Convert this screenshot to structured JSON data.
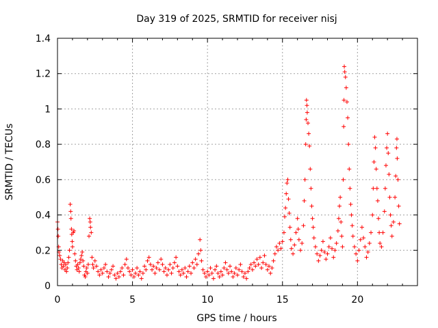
{
  "chart_data": {
    "type": "scatter",
    "title": "Day 319 of 2025, SRMTID for receiver nisj",
    "xlabel": "GPS time / hours",
    "ylabel": "SRMTID / TECUs",
    "xlim": [
      0,
      24
    ],
    "ylim": [
      0,
      1.4
    ],
    "xticks": [
      0,
      5,
      10,
      15,
      20
    ],
    "xtick_labels": [
      "0",
      "5",
      "10",
      "15",
      "20"
    ],
    "yticks": [
      0,
      0.2,
      0.4,
      0.6,
      0.8,
      1.0,
      1.2,
      1.4
    ],
    "ytick_labels": [
      "0",
      "0.2",
      "0.4",
      "0.6",
      "0.8",
      "1",
      "1.2",
      "1.4"
    ],
    "grid": true,
    "marker": "+",
    "color": "#ff0000",
    "series": [
      {
        "name": "SRMTID",
        "points": [
          [
            0.0,
            0.36
          ],
          [
            0.03,
            0.32
          ],
          [
            0.05,
            0.28
          ],
          [
            0.08,
            0.22
          ],
          [
            0.1,
            0.19
          ],
          [
            0.15,
            0.17
          ],
          [
            0.2,
            0.15
          ],
          [
            0.25,
            0.12
          ],
          [
            0.3,
            0.1
          ],
          [
            0.35,
            0.14
          ],
          [
            0.4,
            0.11
          ],
          [
            0.45,
            0.13
          ],
          [
            0.5,
            0.09
          ],
          [
            0.55,
            0.12
          ],
          [
            0.6,
            0.08
          ],
          [
            0.65,
            0.1
          ],
          [
            0.7,
            0.13
          ],
          [
            0.75,
            0.16
          ],
          [
            0.8,
            0.2
          ],
          [
            0.85,
            0.46
          ],
          [
            0.88,
            0.42
          ],
          [
            0.9,
            0.38
          ],
          [
            0.93,
            0.32
          ],
          [
            0.95,
            0.29
          ],
          [
            0.98,
            0.25
          ],
          [
            1.0,
            0.22
          ],
          [
            1.05,
            0.3
          ],
          [
            1.1,
            0.31
          ],
          [
            1.15,
            0.18
          ],
          [
            1.2,
            0.14
          ],
          [
            1.25,
            0.11
          ],
          [
            1.3,
            0.09
          ],
          [
            1.35,
            0.12
          ],
          [
            1.4,
            0.1
          ],
          [
            1.45,
            0.08
          ],
          [
            1.5,
            0.13
          ],
          [
            1.55,
            0.15
          ],
          [
            1.6,
            0.17
          ],
          [
            1.65,
            0.19
          ],
          [
            1.7,
            0.14
          ],
          [
            1.75,
            0.11
          ],
          [
            1.8,
            0.06
          ],
          [
            1.85,
            0.05
          ],
          [
            1.9,
            0.08
          ],
          [
            1.95,
            0.1
          ],
          [
            2.0,
            0.07
          ],
          [
            2.05,
            0.12
          ],
          [
            2.1,
            0.28
          ],
          [
            2.15,
            0.38
          ],
          [
            2.18,
            0.36
          ],
          [
            2.2,
            0.33
          ],
          [
            2.25,
            0.3
          ],
          [
            2.3,
            0.16
          ],
          [
            2.35,
            0.12
          ],
          [
            2.4,
            0.1
          ],
          [
            2.5,
            0.14
          ],
          [
            2.6,
            0.11
          ],
          [
            2.7,
            0.08
          ],
          [
            2.8,
            0.06
          ],
          [
            2.9,
            0.09
          ],
          [
            3.0,
            0.07
          ],
          [
            3.1,
            0.1
          ],
          [
            3.2,
            0.12
          ],
          [
            3.3,
            0.08
          ],
          [
            3.4,
            0.05
          ],
          [
            3.5,
            0.07
          ],
          [
            3.6,
            0.09
          ],
          [
            3.7,
            0.11
          ],
          [
            3.8,
            0.06
          ],
          [
            3.9,
            0.04
          ],
          [
            4.0,
            0.07
          ],
          [
            4.1,
            0.05
          ],
          [
            4.2,
            0.08
          ],
          [
            4.3,
            0.1
          ],
          [
            4.4,
            0.06
          ],
          [
            4.5,
            0.12
          ],
          [
            4.6,
            0.15
          ],
          [
            4.7,
            0.1
          ],
          [
            4.8,
            0.08
          ],
          [
            4.9,
            0.06
          ],
          [
            5.0,
            0.09
          ],
          [
            5.1,
            0.05
          ],
          [
            5.2,
            0.07
          ],
          [
            5.3,
            0.1
          ],
          [
            5.4,
            0.06
          ],
          [
            5.5,
            0.08
          ],
          [
            5.6,
            0.04
          ],
          [
            5.7,
            0.07
          ],
          [
            5.8,
            0.11
          ],
          [
            5.9,
            0.09
          ],
          [
            6.0,
            0.14
          ],
          [
            6.1,
            0.16
          ],
          [
            6.2,
            0.12
          ],
          [
            6.3,
            0.09
          ],
          [
            6.4,
            0.11
          ],
          [
            6.5,
            0.07
          ],
          [
            6.6,
            0.1
          ],
          [
            6.7,
            0.13
          ],
          [
            6.8,
            0.09
          ],
          [
            6.9,
            0.15
          ],
          [
            7.0,
            0.12
          ],
          [
            7.1,
            0.08
          ],
          [
            7.2,
            0.1
          ],
          [
            7.3,
            0.06
          ],
          [
            7.4,
            0.09
          ],
          [
            7.5,
            0.12
          ],
          [
            7.6,
            0.07
          ],
          [
            7.7,
            0.1
          ],
          [
            7.8,
            0.13
          ],
          [
            7.9,
            0.16
          ],
          [
            8.0,
            0.11
          ],
          [
            8.1,
            0.08
          ],
          [
            8.2,
            0.06
          ],
          [
            8.3,
            0.09
          ],
          [
            8.4,
            0.07
          ],
          [
            8.5,
            0.1
          ],
          [
            8.6,
            0.05
          ],
          [
            8.7,
            0.08
          ],
          [
            8.8,
            0.11
          ],
          [
            8.9,
            0.07
          ],
          [
            9.0,
            0.13
          ],
          [
            9.1,
            0.1
          ],
          [
            9.2,
            0.15
          ],
          [
            9.3,
            0.12
          ],
          [
            9.4,
            0.18
          ],
          [
            9.5,
            0.26
          ],
          [
            9.55,
            0.2
          ],
          [
            9.6,
            0.14
          ],
          [
            9.7,
            0.09
          ],
          [
            9.8,
            0.07
          ],
          [
            9.9,
            0.05
          ],
          [
            10.0,
            0.08
          ],
          [
            10.1,
            0.06
          ],
          [
            10.2,
            0.1
          ],
          [
            10.3,
            0.07
          ],
          [
            10.4,
            0.04
          ],
          [
            10.5,
            0.09
          ],
          [
            10.6,
            0.11
          ],
          [
            10.7,
            0.07
          ],
          [
            10.8,
            0.05
          ],
          [
            10.9,
            0.08
          ],
          [
            11.0,
            0.06
          ],
          [
            11.1,
            0.1
          ],
          [
            11.2,
            0.13
          ],
          [
            11.3,
            0.09
          ],
          [
            11.4,
            0.07
          ],
          [
            11.5,
            0.11
          ],
          [
            11.6,
            0.08
          ],
          [
            11.7,
            0.05
          ],
          [
            11.8,
            0.07
          ],
          [
            11.9,
            0.1
          ],
          [
            12.0,
            0.06
          ],
          [
            12.1,
            0.09
          ],
          [
            12.2,
            0.12
          ],
          [
            12.3,
            0.08
          ],
          [
            12.4,
            0.05
          ],
          [
            12.5,
            0.07
          ],
          [
            12.6,
            0.04
          ],
          [
            12.7,
            0.08
          ],
          [
            12.8,
            0.1
          ],
          [
            12.9,
            0.12
          ],
          [
            13.0,
            0.09
          ],
          [
            13.1,
            0.13
          ],
          [
            13.2,
            0.11
          ],
          [
            13.3,
            0.15
          ],
          [
            13.4,
            0.12
          ],
          [
            13.5,
            0.16
          ],
          [
            13.6,
            0.1
          ],
          [
            13.7,
            0.13
          ],
          [
            13.8,
            0.17
          ],
          [
            13.9,
            0.12
          ],
          [
            14.0,
            0.09
          ],
          [
            14.1,
            0.11
          ],
          [
            14.2,
            0.07
          ],
          [
            14.3,
            0.1
          ],
          [
            14.4,
            0.14
          ],
          [
            14.5,
            0.18
          ],
          [
            14.6,
            0.22
          ],
          [
            14.7,
            0.2
          ],
          [
            14.8,
            0.24
          ],
          [
            14.9,
            0.21
          ],
          [
            15.0,
            0.25
          ],
          [
            15.1,
            0.3
          ],
          [
            15.15,
            0.39
          ],
          [
            15.2,
            0.44
          ],
          [
            15.25,
            0.52
          ],
          [
            15.3,
            0.58
          ],
          [
            15.35,
            0.6
          ],
          [
            15.4,
            0.49
          ],
          [
            15.45,
            0.41
          ],
          [
            15.5,
            0.33
          ],
          [
            15.55,
            0.26
          ],
          [
            15.6,
            0.21
          ],
          [
            15.7,
            0.18
          ],
          [
            15.8,
            0.23
          ],
          [
            15.9,
            0.3
          ],
          [
            16.0,
            0.38
          ],
          [
            16.05,
            0.32
          ],
          [
            16.1,
            0.26
          ],
          [
            16.2,
            0.2
          ],
          [
            16.3,
            0.24
          ],
          [
            16.4,
            0.34
          ],
          [
            16.45,
            0.48
          ],
          [
            16.5,
            0.6
          ],
          [
            16.55,
            0.8
          ],
          [
            16.58,
            0.94
          ],
          [
            16.6,
            1.05
          ],
          [
            16.63,
            1.02
          ],
          [
            16.65,
            0.98
          ],
          [
            16.7,
            0.92
          ],
          [
            16.75,
            0.86
          ],
          [
            16.8,
            0.79
          ],
          [
            16.85,
            0.66
          ],
          [
            16.9,
            0.55
          ],
          [
            16.95,
            0.45
          ],
          [
            17.0,
            0.38
          ],
          [
            17.05,
            0.33
          ],
          [
            17.1,
            0.27
          ],
          [
            17.2,
            0.22
          ],
          [
            17.3,
            0.18
          ],
          [
            17.4,
            0.14
          ],
          [
            17.5,
            0.17
          ],
          [
            17.6,
            0.2
          ],
          [
            17.7,
            0.25
          ],
          [
            17.8,
            0.19
          ],
          [
            17.9,
            0.15
          ],
          [
            18.0,
            0.18
          ],
          [
            18.1,
            0.22
          ],
          [
            18.2,
            0.27
          ],
          [
            18.3,
            0.21
          ],
          [
            18.4,
            0.16
          ],
          [
            18.5,
            0.2
          ],
          [
            18.6,
            0.24
          ],
          [
            18.7,
            0.31
          ],
          [
            18.75,
            0.38
          ],
          [
            18.8,
            0.45
          ],
          [
            18.85,
            0.5
          ],
          [
            18.9,
            0.36
          ],
          [
            18.95,
            0.28
          ],
          [
            19.0,
            0.22
          ],
          [
            19.05,
            0.6
          ],
          [
            19.08,
            0.9
          ],
          [
            19.1,
            1.05
          ],
          [
            19.12,
            1.24
          ],
          [
            19.15,
            1.21
          ],
          [
            19.2,
            1.18
          ],
          [
            19.25,
            1.12
          ],
          [
            19.3,
            1.04
          ],
          [
            19.35,
            0.95
          ],
          [
            19.4,
            0.8
          ],
          [
            19.45,
            0.66
          ],
          [
            19.5,
            0.55
          ],
          [
            19.55,
            0.46
          ],
          [
            19.6,
            0.4
          ],
          [
            19.65,
            0.34
          ],
          [
            19.7,
            0.28
          ],
          [
            19.8,
            0.22
          ],
          [
            19.9,
            0.18
          ],
          [
            20.0,
            0.14
          ],
          [
            20.1,
            0.2
          ],
          [
            20.2,
            0.26
          ],
          [
            20.3,
            0.33
          ],
          [
            20.4,
            0.27
          ],
          [
            20.5,
            0.22
          ],
          [
            20.6,
            0.16
          ],
          [
            20.7,
            0.19
          ],
          [
            20.8,
            0.24
          ],
          [
            20.9,
            0.3
          ],
          [
            21.0,
            0.4
          ],
          [
            21.05,
            0.55
          ],
          [
            21.1,
            0.7
          ],
          [
            21.15,
            0.84
          ],
          [
            21.2,
            0.78
          ],
          [
            21.25,
            0.66
          ],
          [
            21.3,
            0.55
          ],
          [
            21.35,
            0.48
          ],
          [
            21.4,
            0.38
          ],
          [
            21.45,
            0.3
          ],
          [
            21.5,
            0.24
          ],
          [
            21.6,
            0.22
          ],
          [
            21.7,
            0.3
          ],
          [
            21.8,
            0.42
          ],
          [
            21.85,
            0.55
          ],
          [
            21.9,
            0.68
          ],
          [
            21.95,
            0.78
          ],
          [
            22.0,
            0.86
          ],
          [
            22.05,
            0.75
          ],
          [
            22.1,
            0.63
          ],
          [
            22.15,
            0.5
          ],
          [
            22.2,
            0.4
          ],
          [
            22.25,
            0.34
          ],
          [
            22.3,
            0.28
          ],
          [
            22.4,
            0.36
          ],
          [
            22.5,
            0.5
          ],
          [
            22.55,
            0.62
          ],
          [
            22.6,
            0.78
          ],
          [
            22.63,
            0.83
          ],
          [
            22.65,
            0.72
          ],
          [
            22.7,
            0.6
          ],
          [
            22.75,
            0.45
          ],
          [
            22.8,
            0.35
          ]
        ]
      }
    ]
  }
}
